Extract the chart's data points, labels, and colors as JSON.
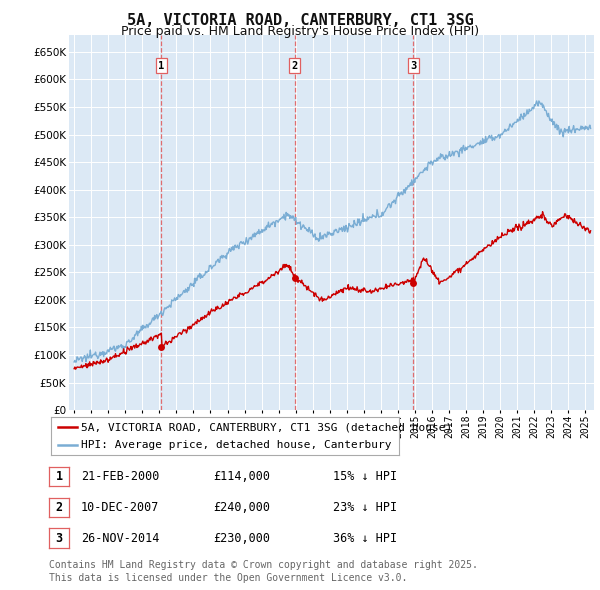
{
  "title": "5A, VICTORIA ROAD, CANTERBURY, CT1 3SG",
  "subtitle": "Price paid vs. HM Land Registry's House Price Index (HPI)",
  "ylim": [
    0,
    680000
  ],
  "yticks": [
    0,
    50000,
    100000,
    150000,
    200000,
    250000,
    300000,
    350000,
    400000,
    450000,
    500000,
    550000,
    600000,
    650000
  ],
  "xlim_start": 1994.7,
  "xlim_end": 2025.5,
  "background_color": "#ffffff",
  "plot_bg_color": "#dce9f5",
  "grid_color": "#ffffff",
  "red_line_color": "#cc0000",
  "blue_line_color": "#7aadd4",
  "sale_marker_color": "#cc0000",
  "sale_vline_color": "#e06060",
  "sales": [
    {
      "num": 1,
      "year": 2000.12,
      "price": 114000,
      "date_str": "21-FEB-2000",
      "amount_str": "£114,000",
      "pct_str": "15% ↓ HPI"
    },
    {
      "num": 2,
      "year": 2007.93,
      "price": 240000,
      "date_str": "10-DEC-2007",
      "amount_str": "£240,000",
      "pct_str": "23% ↓ HPI"
    },
    {
      "num": 3,
      "year": 2014.9,
      "price": 230000,
      "date_str": "26-NOV-2014",
      "amount_str": "£230,000",
      "pct_str": "36% ↓ HPI"
    }
  ],
  "legend_label_red": "5A, VICTORIA ROAD, CANTERBURY, CT1 3SG (detached house)",
  "legend_label_blue": "HPI: Average price, detached house, Canterbury",
  "footer_text": "Contains HM Land Registry data © Crown copyright and database right 2025.\nThis data is licensed under the Open Government Licence v3.0.",
  "title_fontsize": 11,
  "subtitle_fontsize": 9,
  "legend_fontsize": 8,
  "table_fontsize": 8.5,
  "footer_fontsize": 7
}
